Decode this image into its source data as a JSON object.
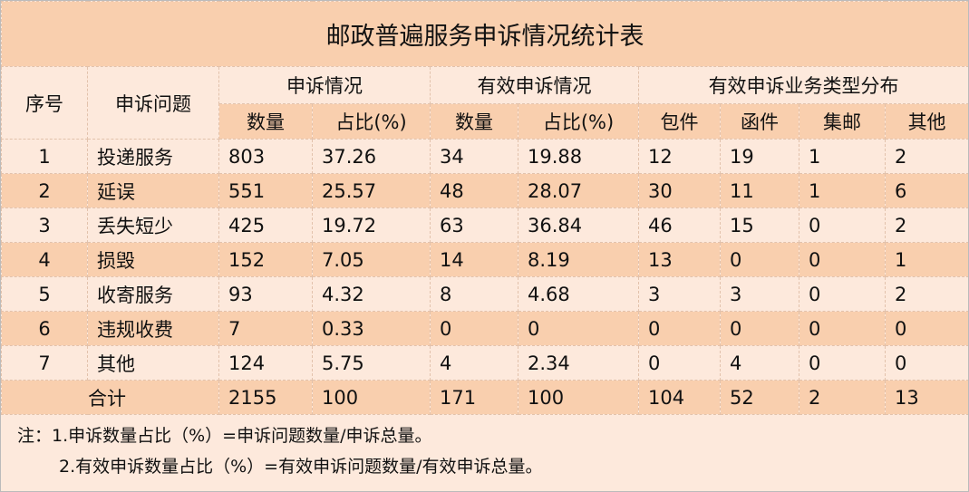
{
  "title": "邮政普遍服务申诉情况统计表",
  "headers": {
    "no": "序号",
    "issue": "申诉问题",
    "group1": "申诉情况",
    "group2": "有效申诉情况",
    "group3": "有效申诉业务类型分布",
    "sub": [
      "数量",
      "占比(%)",
      "数量",
      "占比(%)",
      "包件",
      "函件",
      "集邮",
      "其他"
    ]
  },
  "rows": [
    [
      "1",
      "投递服务",
      "803",
      "37.26",
      "34",
      "19.88",
      "12",
      "19",
      "1",
      "2"
    ],
    [
      "2",
      "延误",
      "551",
      "25.57",
      "48",
      "28.07",
      "30",
      "11",
      "1",
      "6"
    ],
    [
      "3",
      "丢失短少",
      "425",
      "19.72",
      "63",
      "36.84",
      "46",
      "15",
      "0",
      "2"
    ],
    [
      "4",
      "损毁",
      "152",
      "7.05",
      "14",
      "8.19",
      "13",
      "0",
      "0",
      "1"
    ],
    [
      "5",
      "收寄服务",
      "93",
      "4.32",
      "8",
      "4.68",
      "3",
      "3",
      "0",
      "2"
    ],
    [
      "6",
      "违规收费",
      "7",
      "0.33",
      "0",
      "0",
      "0",
      "0",
      "0",
      "0"
    ],
    [
      "7",
      "其他",
      "124",
      "5.75",
      "4",
      "2.34",
      "0",
      "4",
      "0",
      "0"
    ]
  ],
  "total": [
    "合计",
    "2155",
    "100",
    "171",
    "100",
    "104",
    "52",
    "2",
    "13"
  ],
  "notes": [
    "注：1.申诉数量占比（%）=申诉问题数量/申诉总量。",
    "2.有效申诉数量占比（%）=有效申诉问题数量/有效申诉总量。"
  ]
}
